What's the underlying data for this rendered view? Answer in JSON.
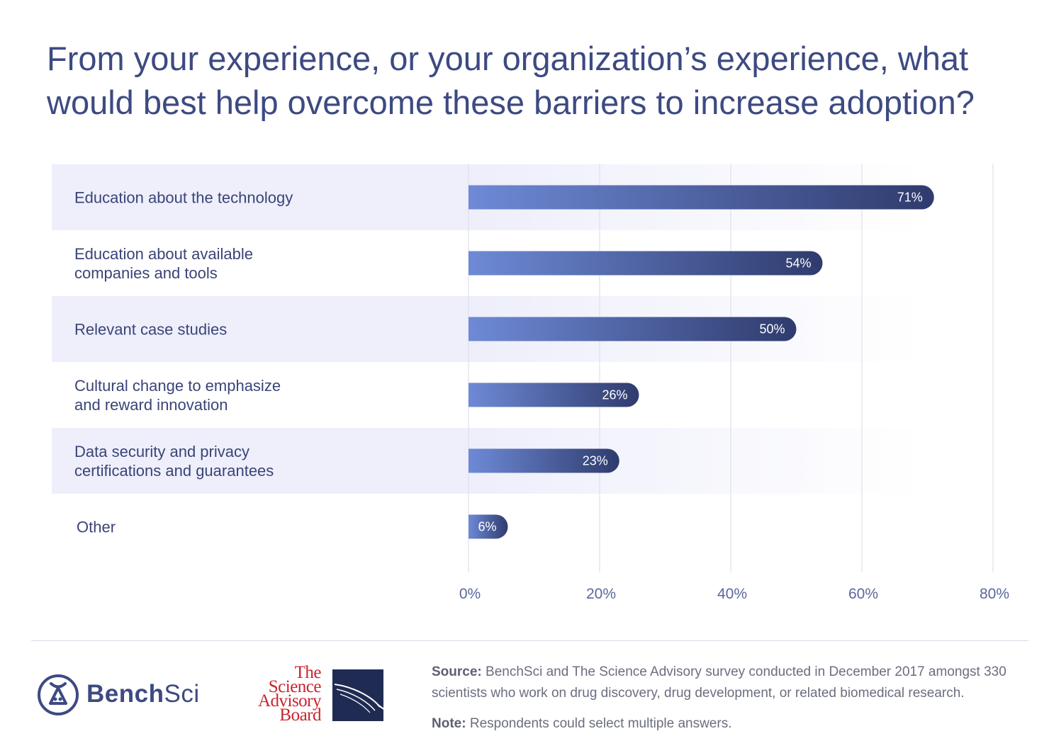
{
  "title": "From your experience, or your organization’s experience, what would best help overcome these barriers to increase adoption?",
  "chart_data": {
    "type": "bar",
    "orientation": "horizontal",
    "title": "From your experience, or your organization’s experience, what would best help overcome these barriers to increase adoption?",
    "categories": [
      [
        "Education about the technology"
      ],
      [
        "Education about available",
        "companies and tools"
      ],
      [
        "Relevant case studies"
      ],
      [
        "Cultural change to emphasize",
        "and reward innovation"
      ],
      [
        "Data security and privacy",
        "certifications and guarantees"
      ],
      [
        "Other"
      ]
    ],
    "values": [
      71,
      54,
      50,
      26,
      23,
      6
    ],
    "value_labels": [
      "71%",
      "54%",
      "50%",
      "26%",
      "23%",
      "6%"
    ],
    "xlim": [
      0,
      80
    ],
    "x_ticks": [
      0,
      20,
      40,
      60,
      80
    ],
    "x_tick_labels": [
      "0%",
      "20%",
      "40%",
      "60%",
      "80%"
    ],
    "grid": true,
    "legend": "none",
    "colors": {
      "bar_start": "#6e8ad6",
      "bar_end": "#2f3b6d",
      "band": "#eeeffb",
      "grid": "#dfe1ea"
    }
  },
  "footer": {
    "bench_logo": "BenchSci",
    "bench_name_bold": "Bench",
    "bench_name_light": "Sci",
    "sab_lines": [
      "The",
      "Science",
      "Advisory",
      "Board"
    ],
    "source_label": "Source:",
    "source_text": "BenchSci and The Science Advisory survey conducted in December 2017 amongst 330 scientists who work on drug discovery, drug development, or related biomedical research.",
    "note_label": "Note:",
    "note_text": "Respondents could select multiple answers."
  }
}
